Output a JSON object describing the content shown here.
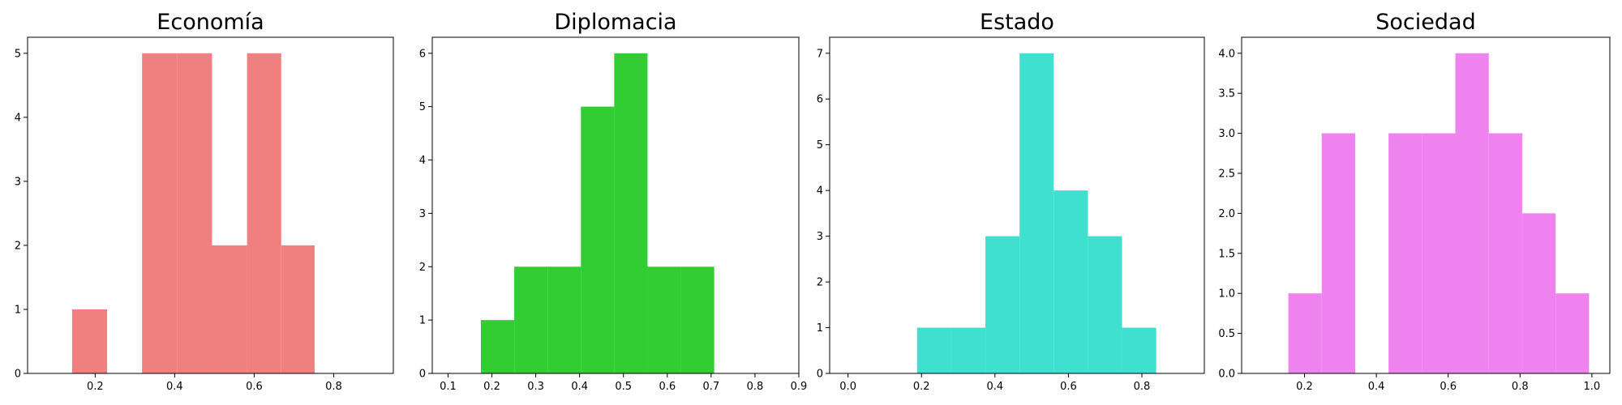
{
  "chart_data": [
    {
      "type": "bar",
      "subtype": "histogram",
      "title": "Economía",
      "color": "#f08080",
      "xlim": [
        0.03,
        0.95
      ],
      "ylim": [
        0,
        5.25
      ],
      "xticks": [
        0.2,
        0.4,
        0.6,
        0.8
      ],
      "xtick_labels": [
        "0.2",
        "0.4",
        "0.6",
        "0.8"
      ],
      "yticks": [
        0,
        1,
        2,
        3,
        4,
        5
      ],
      "ytick_labels": [
        "0",
        "1",
        "2",
        "3",
        "4",
        "5"
      ],
      "bins": [
        {
          "x0": 0.142,
          "x1": 0.23,
          "count": 1
        },
        {
          "x0": 0.23,
          "x1": 0.318,
          "count": 0
        },
        {
          "x0": 0.318,
          "x1": 0.406,
          "count": 5
        },
        {
          "x0": 0.406,
          "x1": 0.494,
          "count": 5
        },
        {
          "x0": 0.494,
          "x1": 0.582,
          "count": 2
        },
        {
          "x0": 0.582,
          "x1": 0.668,
          "count": 5
        },
        {
          "x0": 0.668,
          "x1": 0.752,
          "count": 2
        }
      ]
    },
    {
      "type": "bar",
      "subtype": "histogram",
      "title": "Diplomacia",
      "color": "#32cd32",
      "xlim": [
        0.064,
        0.9
      ],
      "ylim": [
        0,
        6.3
      ],
      "xticks": [
        0.1,
        0.2,
        0.3,
        0.4,
        0.5,
        0.6,
        0.7,
        0.8,
        0.9
      ],
      "xtick_labels": [
        "0.1",
        "0.2",
        "0.3",
        "0.4",
        "0.5",
        "0.6",
        "0.7",
        "0.8",
        "0.9"
      ],
      "yticks": [
        0,
        1,
        2,
        3,
        4,
        5,
        6
      ],
      "ytick_labels": [
        "0",
        "1",
        "2",
        "3",
        "4",
        "5",
        "6"
      ],
      "bins": [
        {
          "x0": 0.175,
          "x1": 0.251,
          "count": 1
        },
        {
          "x0": 0.251,
          "x1": 0.327,
          "count": 2
        },
        {
          "x0": 0.327,
          "x1": 0.403,
          "count": 2
        },
        {
          "x0": 0.403,
          "x1": 0.479,
          "count": 5
        },
        {
          "x0": 0.479,
          "x1": 0.555,
          "count": 6
        },
        {
          "x0": 0.555,
          "x1": 0.631,
          "count": 2
        },
        {
          "x0": 0.631,
          "x1": 0.707,
          "count": 2
        }
      ]
    },
    {
      "type": "bar",
      "subtype": "histogram",
      "title": "Estado",
      "color": "#40e0d0",
      "xlim": [
        -0.05,
        0.97
      ],
      "ylim": [
        0,
        7.35
      ],
      "xticks": [
        0.0,
        0.2,
        0.4,
        0.6,
        0.8
      ],
      "xtick_labels": [
        "0.0",
        "0.2",
        "0.4",
        "0.6",
        "0.8"
      ],
      "yticks": [
        0,
        1,
        2,
        3,
        4,
        5,
        6,
        7
      ],
      "ytick_labels": [
        "0",
        "1",
        "2",
        "3",
        "4",
        "5",
        "6",
        "7"
      ],
      "bins": [
        {
          "x0": 0.188,
          "x1": 0.281,
          "count": 1
        },
        {
          "x0": 0.281,
          "x1": 0.374,
          "count": 1
        },
        {
          "x0": 0.374,
          "x1": 0.467,
          "count": 3
        },
        {
          "x0": 0.467,
          "x1": 0.56,
          "count": 7
        },
        {
          "x0": 0.56,
          "x1": 0.653,
          "count": 4
        },
        {
          "x0": 0.653,
          "x1": 0.746,
          "count": 3
        },
        {
          "x0": 0.746,
          "x1": 0.839,
          "count": 1
        }
      ]
    },
    {
      "type": "bar",
      "subtype": "histogram",
      "title": "Sociedad",
      "color": "#ee82ee",
      "xlim": [
        0.025,
        1.05
      ],
      "ylim": [
        0,
        4.2
      ],
      "xticks": [
        0.2,
        0.4,
        0.6,
        0.8,
        1.0
      ],
      "xtick_labels": [
        "0.2",
        "0.4",
        "0.6",
        "0.8",
        "1.0"
      ],
      "yticks": [
        0,
        0.5,
        1.0,
        1.5,
        2.0,
        2.5,
        3.0,
        3.5,
        4.0
      ],
      "ytick_labels": [
        "0.0",
        "0.5",
        "1.0",
        "1.5",
        "2.0",
        "2.5",
        "3.0",
        "3.5",
        "4.0"
      ],
      "bins": [
        {
          "x0": 0.155,
          "x1": 0.248,
          "count": 1
        },
        {
          "x0": 0.248,
          "x1": 0.341,
          "count": 3
        },
        {
          "x0": 0.341,
          "x1": 0.434,
          "count": 0
        },
        {
          "x0": 0.434,
          "x1": 0.527,
          "count": 3
        },
        {
          "x0": 0.527,
          "x1": 0.62,
          "count": 3
        },
        {
          "x0": 0.62,
          "x1": 0.713,
          "count": 4
        },
        {
          "x0": 0.713,
          "x1": 0.806,
          "count": 3
        },
        {
          "x0": 0.806,
          "x1": 0.899,
          "count": 2
        },
        {
          "x0": 0.899,
          "x1": 0.992,
          "count": 1
        }
      ]
    }
  ]
}
